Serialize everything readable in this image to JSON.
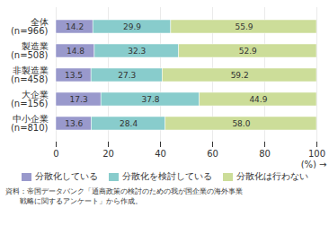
{
  "chart_data": {
    "type": "bar",
    "orientation": "horizontal",
    "stacked": true,
    "categories": [
      "全体\n(n=966)",
      "製造業\n(n=508)",
      "非製造業\n(n=458)",
      "大企業\n(n=156)",
      "中小企業\n(n=810)"
    ],
    "series": [
      {
        "name": "分散化している",
        "color": "#9999cc",
        "values": [
          14.2,
          14.8,
          13.5,
          17.3,
          13.6
        ],
        "value_labels": [
          "14.2",
          "14.8",
          "13.5",
          "17.3",
          "13.6"
        ]
      },
      {
        "name": "分散化を検討している",
        "color": "#88cccc",
        "values": [
          29.9,
          32.3,
          27.3,
          37.8,
          28.4
        ],
        "value_labels": [
          "29.9",
          "32.3",
          "27.3",
          "37.8",
          "28.4"
        ]
      },
      {
        "name": "分散化は行わない",
        "color": "#ccdd99",
        "values": [
          55.9,
          52.9,
          59.2,
          44.9,
          58.0
        ],
        "value_labels": [
          "55.9",
          "52.9",
          "59.2",
          "44.9",
          "58.0"
        ]
      }
    ],
    "xlabel": "(%)",
    "xlim": [
      0,
      100
    ],
    "xticks": [
      0,
      20,
      40,
      60,
      80,
      100
    ],
    "grid": true,
    "data_labels": true,
    "legend": "bottom",
    "annotations": [
      "資料：帝国データバンク「通商政策の検討のための我が国企業の海外事業",
      "　　戦略に関するアンケート」から作成。"
    ]
  }
}
